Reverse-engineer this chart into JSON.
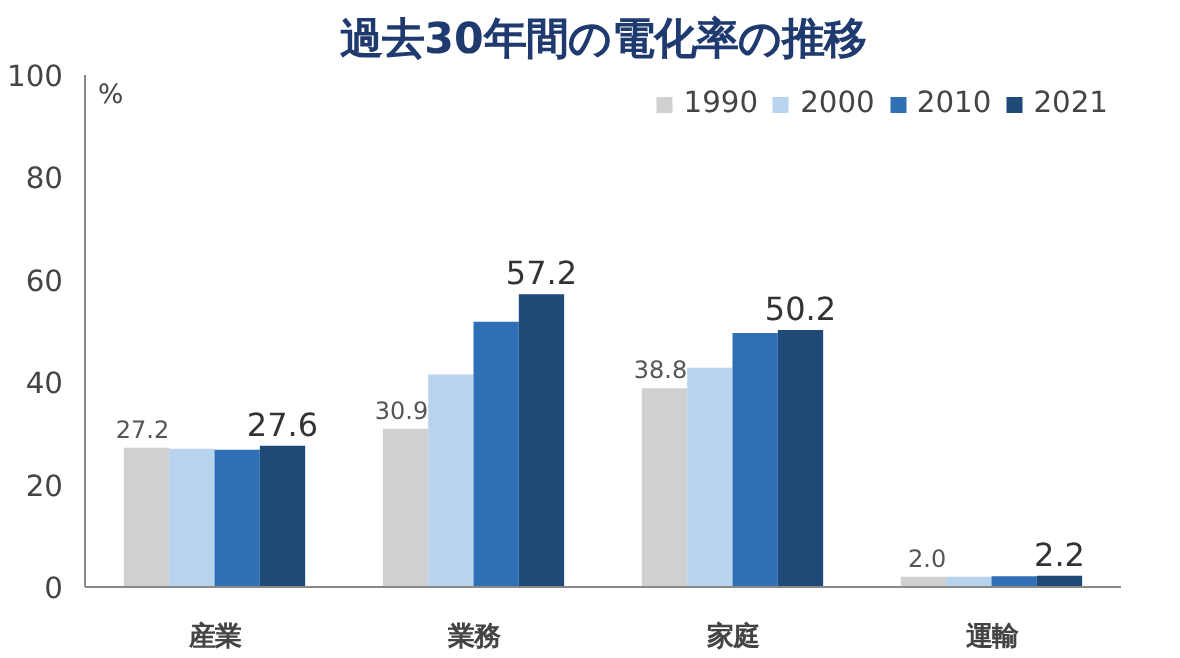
{
  "chart_data": {
    "type": "bar",
    "title": "過去30年間の電化率の推移",
    "ylabel": "%",
    "categories": [
      "産業",
      "業務",
      "家庭",
      "運輸"
    ],
    "series": [
      {
        "name": "1990",
        "color": "#d0d0d0",
        "values": [
          27.2,
          30.9,
          38.8,
          2.0
        ],
        "value_labels": [
          "27.2",
          "30.9",
          "38.8",
          "2.0"
        ]
      },
      {
        "name": "2000",
        "color": "#b7d3ee",
        "values": [
          27.0,
          41.5,
          42.8,
          2.0
        ]
      },
      {
        "name": "2010",
        "color": "#2e6fb5",
        "values": [
          26.8,
          51.8,
          49.6,
          2.1
        ]
      },
      {
        "name": "2021",
        "color": "#1f4a78",
        "values": [
          27.6,
          57.2,
          50.2,
          2.2
        ],
        "value_labels": [
          "27.6",
          "57.2",
          "50.2",
          "2.2"
        ]
      }
    ],
    "ylim": [
      0,
      100
    ],
    "yticks": [
      0,
      20,
      40,
      60,
      80,
      100
    ],
    "grid": false,
    "legend": "top right"
  }
}
